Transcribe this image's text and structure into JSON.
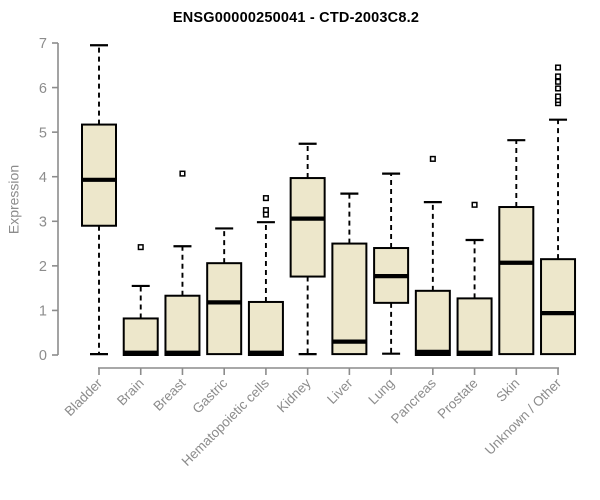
{
  "chart_data": {
    "type": "boxplot",
    "title": "ENSG00000250041 - CTD-2003C8.2",
    "xlabel": "",
    "ylabel": "Expression",
    "ylim": [
      0,
      7
    ],
    "yticks": [
      0,
      1,
      2,
      3,
      4,
      5,
      6,
      7
    ],
    "grid": "off",
    "legend": "none",
    "categories": [
      "Bladder",
      "Brain",
      "Breast",
      "Gastric",
      "Hematopoietic cells",
      "Kidney",
      "Liver",
      "Lung",
      "Pancreas",
      "Prostate",
      "Skin",
      "Unknown / Other"
    ],
    "series": [
      {
        "name": "Bladder",
        "whisker_low": 0.02,
        "q1": 2.9,
        "median": 3.93,
        "q3": 5.17,
        "whisker_high": 6.95,
        "outliers": []
      },
      {
        "name": "Brain",
        "whisker_low": 0.0,
        "q1": 0.0,
        "median": 0.05,
        "q3": 0.82,
        "whisker_high": 1.55,
        "outliers": [
          2.42
        ]
      },
      {
        "name": "Breast",
        "whisker_low": 0.0,
        "q1": 0.0,
        "median": 0.05,
        "q3": 1.33,
        "whisker_high": 2.44,
        "outliers": [
          4.07
        ]
      },
      {
        "name": "Gastric",
        "whisker_low": 0.0,
        "q1": 0.02,
        "median": 1.18,
        "q3": 2.06,
        "whisker_high": 2.84,
        "outliers": []
      },
      {
        "name": "Hematopoietic cells",
        "whisker_low": 0.0,
        "q1": 0.0,
        "median": 0.05,
        "q3": 1.19,
        "whisker_high": 2.98,
        "outliers": [
          3.52,
          3.25,
          3.15
        ]
      },
      {
        "name": "Kidney",
        "whisker_low": 0.02,
        "q1": 1.76,
        "median": 3.06,
        "q3": 3.97,
        "whisker_high": 4.74,
        "outliers": []
      },
      {
        "name": "Liver",
        "whisker_low": 0.0,
        "q1": 0.02,
        "median": 0.3,
        "q3": 2.5,
        "whisker_high": 3.62,
        "outliers": []
      },
      {
        "name": "Lung",
        "whisker_low": 0.03,
        "q1": 1.17,
        "median": 1.77,
        "q3": 2.4,
        "whisker_high": 4.07,
        "outliers": []
      },
      {
        "name": "Pancreas",
        "whisker_low": 0.0,
        "q1": 0.0,
        "median": 0.07,
        "q3": 1.44,
        "whisker_high": 3.43,
        "outliers": [
          4.4
        ]
      },
      {
        "name": "Prostate",
        "whisker_low": 0.0,
        "q1": 0.0,
        "median": 0.05,
        "q3": 1.27,
        "whisker_high": 2.58,
        "outliers": [
          3.37
        ]
      },
      {
        "name": "Skin",
        "whisker_low": 0.0,
        "q1": 0.02,
        "median": 2.07,
        "q3": 3.32,
        "whisker_high": 4.82,
        "outliers": []
      },
      {
        "name": "Unknown / Other",
        "whisker_low": 0.0,
        "q1": 0.02,
        "median": 0.94,
        "q3": 2.15,
        "whisker_high": 5.28,
        "outliers": [
          5.65,
          5.72,
          5.8,
          5.98,
          6.13,
          6.25,
          6.45
        ]
      }
    ],
    "colors": {
      "box_fill": "#EDE7CB",
      "box_border": "#000000",
      "median": "#000000",
      "whisker": "#000000",
      "outlier": "#000000",
      "axis": "#8C8C8C",
      "tick_label": "#8C8C8C",
      "title": "#000000",
      "background": "#FFFFFF"
    }
  }
}
